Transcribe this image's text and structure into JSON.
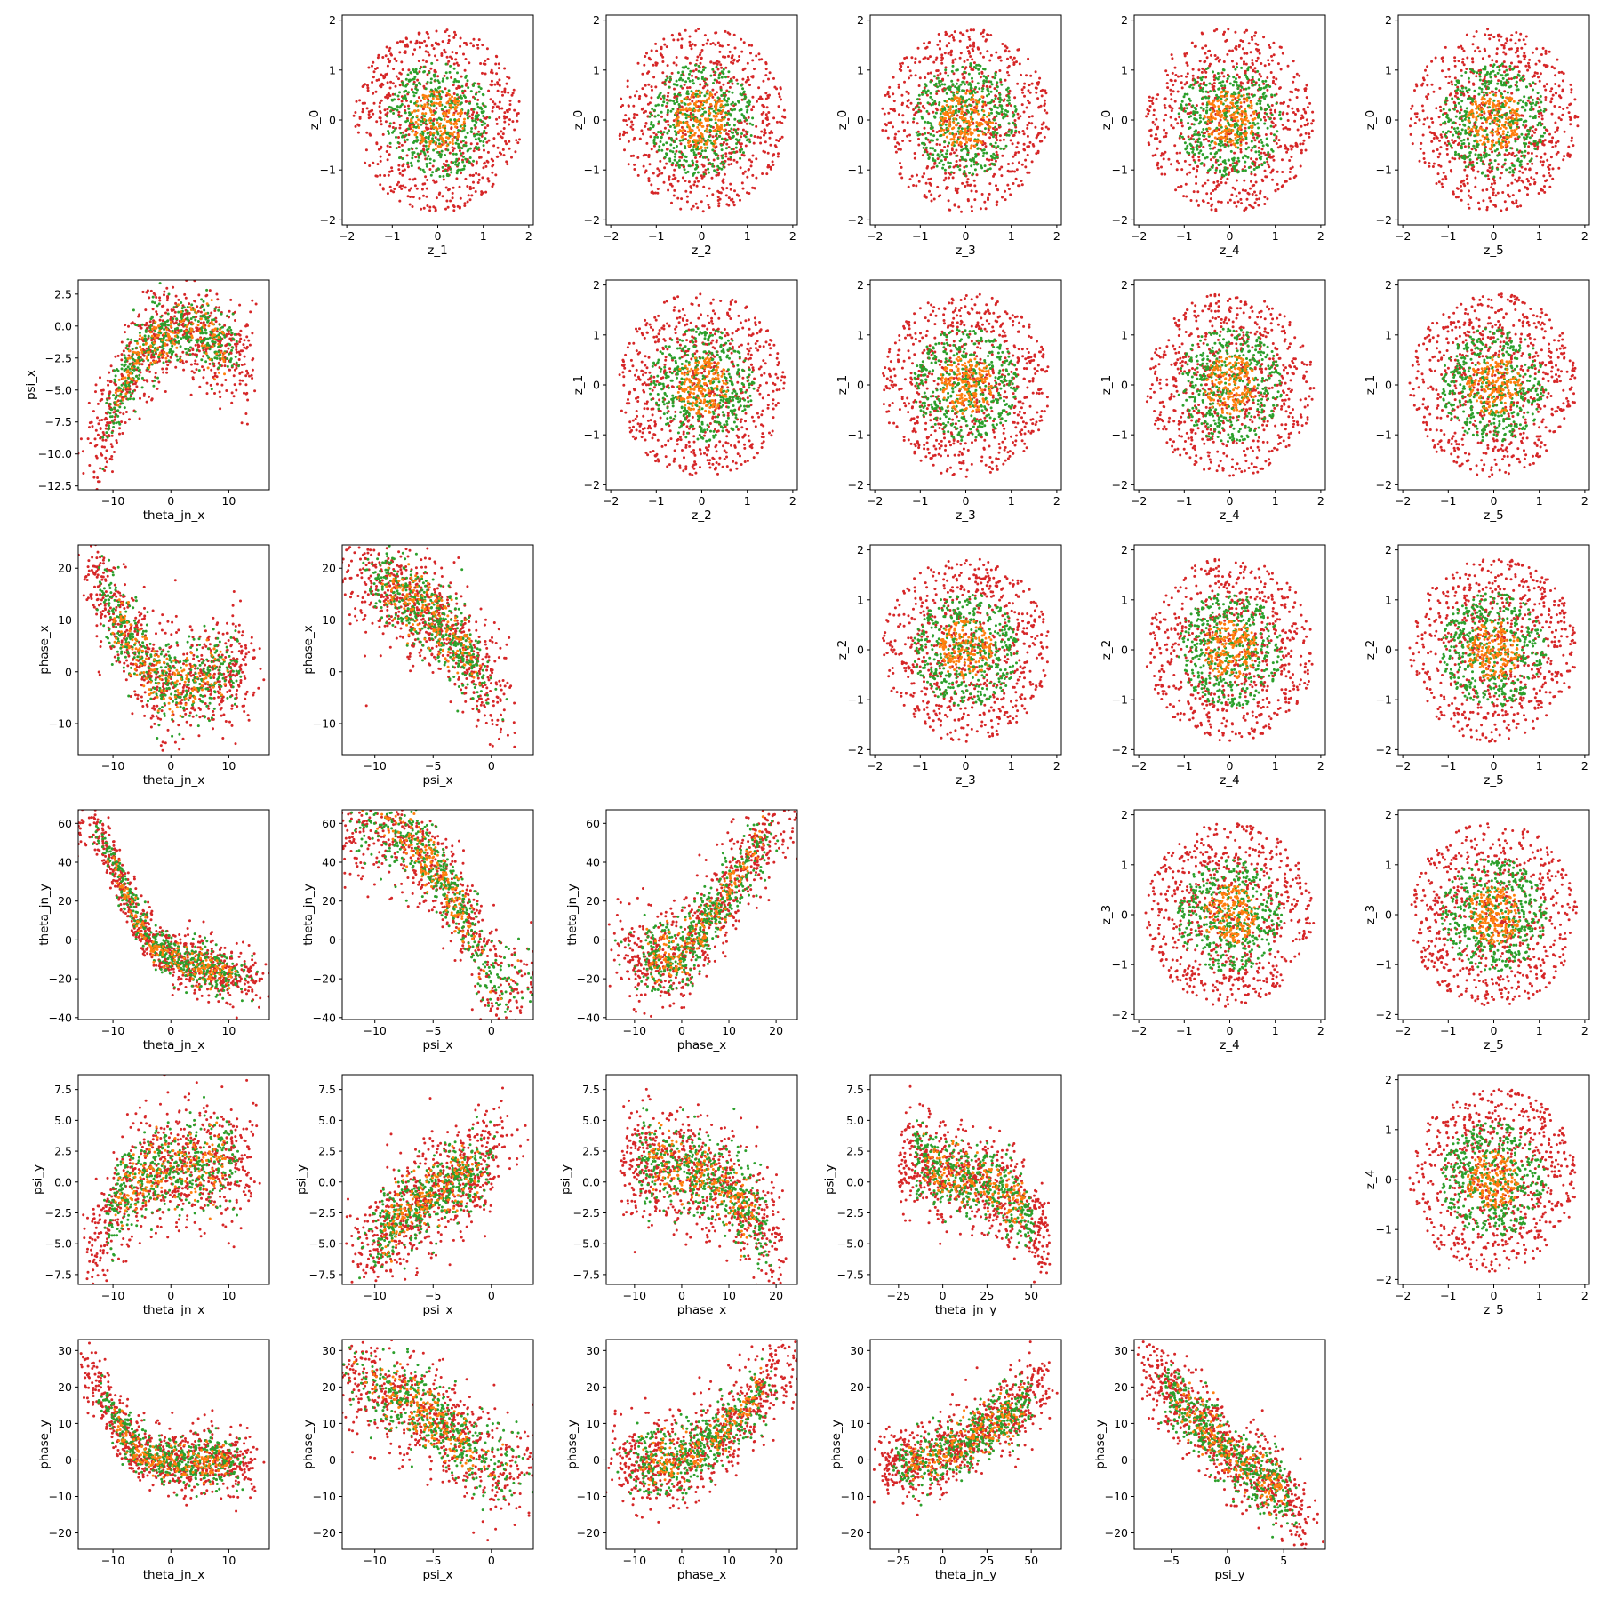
{
  "colors": {
    "red": "#d62728",
    "green": "#2ca02c",
    "orange": "#ff7f0e"
  },
  "chart_data": {
    "type": "scatter",
    "layout": "pair-grid",
    "grid_size": [
      6,
      6
    ],
    "series_colors": [
      "#d62728",
      "#2ca02c",
      "#ff7f0e"
    ],
    "variables": {
      "z_0": {
        "ticks": [
          -2,
          -1,
          0,
          1,
          2
        ],
        "range": [
          -2.1,
          2.1
        ]
      },
      "z_1": {
        "ticks": [
          -2,
          -1,
          0,
          1,
          2
        ],
        "range": [
          -2.1,
          2.1
        ]
      },
      "z_2": {
        "ticks": [
          -2,
          -1,
          0,
          1,
          2
        ],
        "range": [
          -2.1,
          2.1
        ]
      },
      "z_3": {
        "ticks": [
          -2,
          -1,
          0,
          1,
          2
        ],
        "range": [
          -2.1,
          2.1
        ]
      },
      "z_4": {
        "ticks": [
          -2,
          -1,
          0,
          1,
          2
        ],
        "range": [
          -2.1,
          2.1
        ]
      },
      "z_5": {
        "ticks": [
          -2,
          -1,
          0,
          1,
          2
        ],
        "range": [
          -2.1,
          2.1
        ]
      },
      "theta_jn_x": {
        "ticks": [
          -10,
          0,
          10
        ],
        "range": [
          -16,
          17
        ]
      },
      "psi_x": {
        "ticks": [
          -12.5,
          -10.0,
          -7.5,
          -5.0,
          -2.5,
          0.0,
          2.5
        ],
        "range": [
          -12.8,
          3.6
        ],
        "xticks": [
          -10,
          -5,
          0
        ]
      },
      "phase_x": {
        "ticks": [
          -10,
          0,
          10,
          20
        ],
        "range": [
          -16,
          24.5
        ]
      },
      "theta_jn_y": {
        "ticks": [
          -40,
          -20,
          0,
          20,
          40,
          60
        ],
        "range": [
          -41,
          67
        ],
        "xticks": [
          -25,
          0,
          25,
          50
        ]
      },
      "psi_y": {
        "ticks": [
          -7.5,
          -5.0,
          -2.5,
          0.0,
          2.5,
          5.0,
          7.5
        ],
        "range": [
          -8.3,
          8.7
        ],
        "xticks": [
          -5,
          0,
          5
        ]
      },
      "phase_y": {
        "ticks": [
          -20,
          -10,
          0,
          10,
          20,
          30
        ],
        "range": [
          -24.5,
          33
        ]
      }
    },
    "panels": [
      {
        "row": 0,
        "col": 1,
        "x": "z_1",
        "y": "z_0",
        "xlabel": "z_1",
        "ylabel": "z_0",
        "kind": "isotropic"
      },
      {
        "row": 0,
        "col": 2,
        "x": "z_2",
        "y": "z_0",
        "xlabel": "z_2",
        "ylabel": "z_0",
        "kind": "isotropic"
      },
      {
        "row": 0,
        "col": 3,
        "x": "z_3",
        "y": "z_0",
        "xlabel": "z_3",
        "ylabel": "z_0",
        "kind": "isotropic"
      },
      {
        "row": 0,
        "col": 4,
        "x": "z_4",
        "y": "z_0",
        "xlabel": "z_4",
        "ylabel": "z_0",
        "kind": "isotropic"
      },
      {
        "row": 0,
        "col": 5,
        "x": "z_5",
        "y": "z_0",
        "xlabel": "z_5",
        "ylabel": "z_0",
        "kind": "isotropic"
      },
      {
        "row": 1,
        "col": 0,
        "x": "theta_jn_x",
        "y": "psi_x",
        "xlabel": "theta_jn_x",
        "ylabel": "psi_x",
        "kind": "curve",
        "trend": [
          [
            -14,
            -10.5
          ],
          [
            -10,
            -6.5
          ],
          [
            -6,
            -2.5
          ],
          [
            -2,
            -0.8
          ],
          [
            2,
            -0.4
          ],
          [
            6,
            -0.8
          ],
          [
            10,
            -1.8
          ],
          [
            14,
            -2.5
          ]
        ],
        "spread": [
          0.8,
          1.3
        ]
      },
      {
        "row": 1,
        "col": 2,
        "x": "z_2",
        "y": "z_1",
        "xlabel": "z_2",
        "ylabel": "z_1",
        "kind": "isotropic"
      },
      {
        "row": 1,
        "col": 3,
        "x": "z_3",
        "y": "z_1",
        "xlabel": "z_3",
        "ylabel": "z_1",
        "kind": "isotropic"
      },
      {
        "row": 1,
        "col": 4,
        "x": "z_4",
        "y": "z_1",
        "xlabel": "z_4",
        "ylabel": "z_1",
        "kind": "isotropic"
      },
      {
        "row": 1,
        "col": 5,
        "x": "z_5",
        "y": "z_1",
        "xlabel": "z_5",
        "ylabel": "z_1",
        "kind": "isotropic"
      },
      {
        "row": 2,
        "col": 0,
        "x": "theta_jn_x",
        "y": "phase_x",
        "xlabel": "theta_jn_x",
        "ylabel": "phase_x",
        "kind": "curve",
        "trend": [
          [
            -14.5,
            20
          ],
          [
            -10,
            11
          ],
          [
            -6,
            4
          ],
          [
            -2,
            -1.5
          ],
          [
            2,
            -2.5
          ],
          [
            6,
            -1
          ],
          [
            10,
            0.5
          ],
          [
            14,
            2
          ]
        ],
        "spread": [
          1.2,
          3.5
        ]
      },
      {
        "row": 2,
        "col": 1,
        "x": "psi_x",
        "y": "phase_x",
        "xlabel": "psi_x",
        "ylabel": "phase_x",
        "kind": "curve",
        "trend": [
          [
            -11,
            19
          ],
          [
            -8,
            15
          ],
          [
            -5,
            11
          ],
          [
            -3,
            6
          ],
          [
            -1.5,
            2
          ],
          [
            -0.5,
            -2
          ],
          [
            0.3,
            -5
          ]
        ],
        "spread": [
          1.4,
          3.5
        ]
      },
      {
        "row": 2,
        "col": 3,
        "x": "z_3",
        "y": "z_2",
        "xlabel": "z_3",
        "ylabel": "z_2",
        "kind": "isotropic"
      },
      {
        "row": 2,
        "col": 4,
        "x": "z_4",
        "y": "z_2",
        "xlabel": "z_4",
        "ylabel": "z_2",
        "kind": "isotropic"
      },
      {
        "row": 2,
        "col": 5,
        "x": "z_5",
        "y": "z_2",
        "xlabel": "z_5",
        "ylabel": "z_2",
        "kind": "isotropic"
      },
      {
        "row": 3,
        "col": 0,
        "x": "theta_jn_x",
        "y": "theta_jn_y",
        "xlabel": "theta_jn_x",
        "ylabel": "theta_jn_y",
        "kind": "curve",
        "trend": [
          [
            -14.5,
            61
          ],
          [
            -10,
            40
          ],
          [
            -6,
            12
          ],
          [
            -3,
            -3
          ],
          [
            0,
            -8
          ],
          [
            5,
            -14
          ],
          [
            10,
            -18
          ],
          [
            14,
            -20
          ]
        ],
        "spread": [
          3,
          5
        ]
      },
      {
        "row": 3,
        "col": 1,
        "x": "psi_x",
        "y": "theta_jn_y",
        "xlabel": "psi_x",
        "ylabel": "theta_jn_y",
        "kind": "curve",
        "trend": [
          [
            -9,
            58
          ],
          [
            -6,
            45
          ],
          [
            -4,
            30
          ],
          [
            -2.5,
            15
          ],
          [
            -1.5,
            2
          ],
          [
            -0.8,
            -10
          ],
          [
            -0.2,
            -20
          ]
        ],
        "spread": [
          5,
          9
        ]
      },
      {
        "row": 3,
        "col": 2,
        "x": "phase_x",
        "y": "theta_jn_y",
        "xlabel": "phase_x",
        "ylabel": "theta_jn_y",
        "kind": "curve",
        "trend": [
          [
            -12,
            -8
          ],
          [
            -6,
            -10
          ],
          [
            0,
            -8
          ],
          [
            5,
            8
          ],
          [
            10,
            25
          ],
          [
            15,
            45
          ],
          [
            21,
            60
          ]
        ],
        "spread": [
          4,
          8
        ]
      },
      {
        "row": 3,
        "col": 4,
        "x": "z_4",
        "y": "z_3",
        "xlabel": "z_4",
        "ylabel": "z_3",
        "kind": "isotropic"
      },
      {
        "row": 3,
        "col": 5,
        "x": "z_5",
        "y": "z_3",
        "xlabel": "z_5",
        "ylabel": "z_3",
        "kind": "isotropic"
      },
      {
        "row": 4,
        "col": 0,
        "x": "theta_jn_x",
        "y": "psi_y",
        "xlabel": "theta_jn_x",
        "ylabel": "psi_y",
        "kind": "curve",
        "trend": [
          [
            -14,
            -6.5
          ],
          [
            -11,
            -3.5
          ],
          [
            -8,
            -0.5
          ],
          [
            -5,
            0.6
          ],
          [
            0,
            1.1
          ],
          [
            5,
            1.4
          ],
          [
            10,
            1.6
          ],
          [
            14,
            2.2
          ]
        ],
        "spread": [
          0.8,
          1.6
        ]
      },
      {
        "row": 4,
        "col": 1,
        "x": "psi_x",
        "y": "psi_y",
        "xlabel": "psi_x",
        "ylabel": "psi_y",
        "kind": "curve",
        "trend": [
          [
            -11,
            -6
          ],
          [
            -8,
            -3
          ],
          [
            -5,
            -1
          ],
          [
            -3,
            0.2
          ],
          [
            -1,
            1
          ],
          [
            0,
            2.2
          ],
          [
            0.5,
            3.5
          ]
        ],
        "spread": [
          1.2,
          1.4
        ]
      },
      {
        "row": 4,
        "col": 2,
        "x": "phase_x",
        "y": "psi_y",
        "xlabel": "phase_x",
        "ylabel": "psi_y",
        "kind": "curve",
        "trend": [
          [
            -12,
            1.5
          ],
          [
            -6,
            1.6
          ],
          [
            0,
            1.2
          ],
          [
            5,
            0.5
          ],
          [
            10,
            -0.5
          ],
          [
            15,
            -2.5
          ],
          [
            21,
            -6
          ]
        ],
        "spread": [
          1.0,
          1.6
        ]
      },
      {
        "row": 4,
        "col": 3,
        "x": "theta_jn_y",
        "y": "psi_y",
        "xlabel": "theta_jn_y",
        "ylabel": "psi_y",
        "kind": "curve",
        "trend": [
          [
            -25,
            1.2
          ],
          [
            -15,
            2.2
          ],
          [
            -5,
            0.8
          ],
          [
            10,
            0.5
          ],
          [
            25,
            0
          ],
          [
            40,
            -1.5
          ],
          [
            50,
            -3
          ],
          [
            60,
            -5
          ]
        ],
        "spread": [
          0.8,
          1.3
        ]
      },
      {
        "row": 4,
        "col": 5,
        "x": "z_5",
        "y": "z_4",
        "xlabel": "z_5",
        "ylabel": "z_4",
        "kind": "isotropic"
      },
      {
        "row": 5,
        "col": 0,
        "x": "theta_jn_x",
        "y": "phase_y",
        "xlabel": "theta_jn_x",
        "ylabel": "phase_y",
        "kind": "curve",
        "trend": [
          [
            -14.5,
            24
          ],
          [
            -11,
            15
          ],
          [
            -8,
            7
          ],
          [
            -5,
            2
          ],
          [
            -2,
            0
          ],
          [
            5,
            -0.5
          ],
          [
            10,
            -1
          ],
          [
            14,
            -1.5
          ]
        ],
        "spread": [
          1.5,
          3
        ]
      },
      {
        "row": 5,
        "col": 1,
        "x": "psi_x",
        "y": "phase_y",
        "xlabel": "psi_x",
        "ylabel": "phase_y",
        "kind": "curve",
        "trend": [
          [
            -11,
            22
          ],
          [
            -8,
            17
          ],
          [
            -5,
            12
          ],
          [
            -3,
            6
          ],
          [
            -1.5,
            2
          ],
          [
            -0.5,
            0
          ],
          [
            1,
            -1
          ]
        ],
        "spread": [
          4,
          5
        ]
      },
      {
        "row": 5,
        "col": 2,
        "x": "phase_x",
        "y": "phase_y",
        "xlabel": "phase_x",
        "ylabel": "phase_y",
        "kind": "curve",
        "trend": [
          [
            -14,
            -1
          ],
          [
            -8,
            -1
          ],
          [
            -2,
            -0.5
          ],
          [
            3,
            2
          ],
          [
            8,
            7
          ],
          [
            13,
            13
          ],
          [
            17,
            19
          ],
          [
            22,
            25
          ]
        ],
        "spread": [
          3,
          4
        ]
      },
      {
        "row": 5,
        "col": 3,
        "x": "theta_jn_y",
        "y": "phase_y",
        "xlabel": "theta_jn_y",
        "ylabel": "phase_y",
        "kind": "curve",
        "trend": [
          [
            -35,
            -1
          ],
          [
            -20,
            -1
          ],
          [
            -10,
            0
          ],
          [
            0,
            2
          ],
          [
            15,
            5
          ],
          [
            30,
            10
          ],
          [
            45,
            15
          ],
          [
            60,
            22
          ]
        ],
        "spread": [
          3,
          3.5
        ]
      },
      {
        "row": 5,
        "col": 4,
        "x": "psi_y",
        "y": "phase_y",
        "xlabel": "psi_y",
        "ylabel": "phase_y",
        "kind": "curve",
        "trend": [
          [
            -7,
            24
          ],
          [
            -5,
            18
          ],
          [
            -3,
            12
          ],
          [
            -1,
            6
          ],
          [
            0,
            1
          ],
          [
            2,
            -3
          ],
          [
            4,
            -6
          ],
          [
            7,
            -17
          ]
        ],
        "spread": [
          0.7,
          4
        ]
      }
    ]
  }
}
